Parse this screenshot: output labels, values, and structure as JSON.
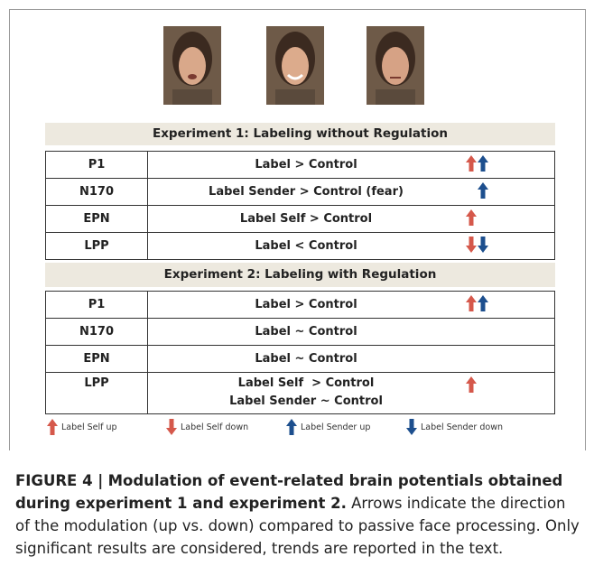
{
  "experiment1": {
    "title": "Experiment 1: Labeling without Regulation",
    "rows": [
      [
        "P1",
        "Label > Control"
      ],
      [
        "N170",
        "Label Sender > Control (fear)"
      ],
      [
        "EPN",
        "Label Self > Control"
      ],
      [
        "LPP",
        "Label < Control"
      ]
    ]
  },
  "experiment2": {
    "title": "Experiment 2: Labeling with Regulation",
    "rows": [
      [
        "P1",
        "Label > Control"
      ],
      [
        "N170",
        "Label ~ Control"
      ],
      [
        "EPN",
        "Label ~ Control"
      ],
      [
        "LPP",
        "Label Self  > Control",
        "Label Sender ~ Control"
      ]
    ]
  },
  "legend": [
    "Label Self up",
    "Label Self down",
    "Label Sender up",
    "Label Sender down"
  ],
  "caption": {
    "label": "FIGURE 4 |",
    "title": "Modulation of event-related brain potentials obtained during experiment 1 and experiment 2.",
    "text": "Arrows indicate the direction of the modulation (up vs. down) compared to passive face processing. Only significant results are considered, trends are reported in the text."
  }
}
